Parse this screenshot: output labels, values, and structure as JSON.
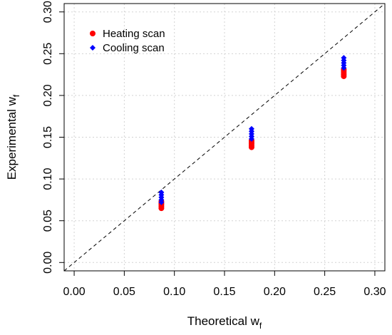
{
  "chart_data": {
    "type": "scatter",
    "xlabel": "Theoretical w",
    "xlabel_sub": "f",
    "ylabel": "Experimental w",
    "ylabel_sub": "f",
    "xlim": [
      -0.01,
      0.31
    ],
    "ylim": [
      -0.01,
      0.31
    ],
    "xticks": [
      "0.00",
      "0.05",
      "0.10",
      "0.15",
      "0.20",
      "0.25",
      "0.30"
    ],
    "yticks": [
      "0.00",
      "0.05",
      "0.10",
      "0.15",
      "0.20",
      "0.25",
      "0.30"
    ],
    "grid": true,
    "legend_position": "top-left",
    "reference_line": "y = x (dashed)",
    "series": [
      {
        "name": "Heating scan",
        "color": "#ff0000",
        "marker": "circle",
        "x": [
          0.087,
          0.087,
          0.087,
          0.087,
          0.087,
          0.177,
          0.177,
          0.177,
          0.177,
          0.177,
          0.269,
          0.269,
          0.269,
          0.269,
          0.269
        ],
        "y": [
          0.065,
          0.067,
          0.069,
          0.071,
          0.073,
          0.138,
          0.14,
          0.142,
          0.144,
          0.146,
          0.223,
          0.225,
          0.227,
          0.229,
          0.231
        ]
      },
      {
        "name": "Cooling scan",
        "color": "#0000ff",
        "marker": "diamond",
        "x": [
          0.087,
          0.087,
          0.087,
          0.087,
          0.087,
          0.177,
          0.177,
          0.177,
          0.177,
          0.177,
          0.269,
          0.269,
          0.269,
          0.269,
          0.269
        ],
        "y": [
          0.072,
          0.075,
          0.078,
          0.081,
          0.084,
          0.148,
          0.151,
          0.154,
          0.157,
          0.16,
          0.233,
          0.236,
          0.239,
          0.242,
          0.245
        ]
      }
    ]
  }
}
